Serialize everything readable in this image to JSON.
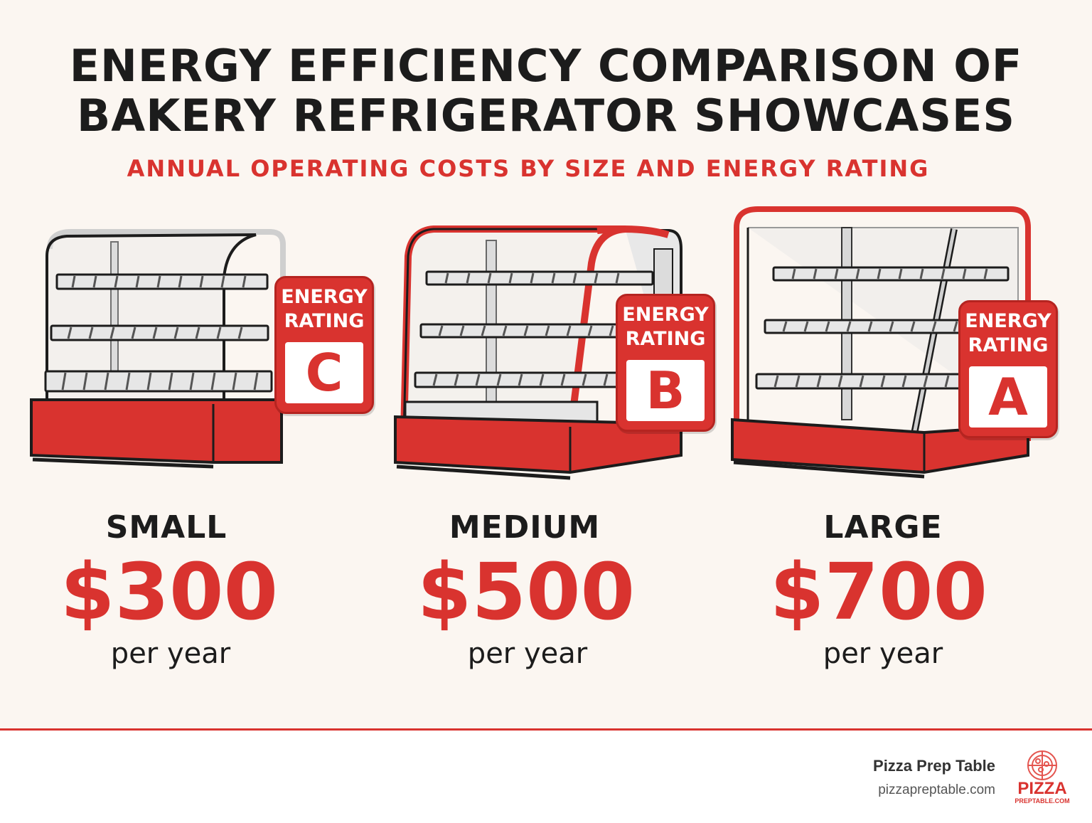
{
  "header": {
    "title_line1": "ENERGY EFFICIENCY COMPARISON OF",
    "title_line2": "BAKERY REFRIGERATOR SHOWCASES",
    "subtitle": "ANNUAL OPERATING COSTS BY SIZE AND ENERGY RATING"
  },
  "colors": {
    "accent": "#d9332f",
    "text": "#1c1c1c",
    "background": "#fbf6f1"
  },
  "showcases": [
    {
      "size": "SMALL",
      "badge_line1": "ENERGY",
      "badge_line2": "RATING",
      "rating": "C",
      "price": "$300",
      "period": "per year"
    },
    {
      "size": "MEDIUM",
      "badge_line1": "ENERGY",
      "badge_line2": "RATING",
      "rating": "B",
      "price": "$500",
      "period": "per year"
    },
    {
      "size": "LARGE",
      "badge_line1": "ENERGY",
      "badge_line2": "RATING",
      "rating": "A",
      "price": "$700",
      "period": "per year"
    }
  ],
  "footer": {
    "brand_name": "Pizza Prep Table",
    "brand_url": "pizzapreptable.com",
    "logo_line1": "PIZZA",
    "logo_line2": "PREPTABLE.COM",
    "logo_icon": "pizza-icon"
  }
}
